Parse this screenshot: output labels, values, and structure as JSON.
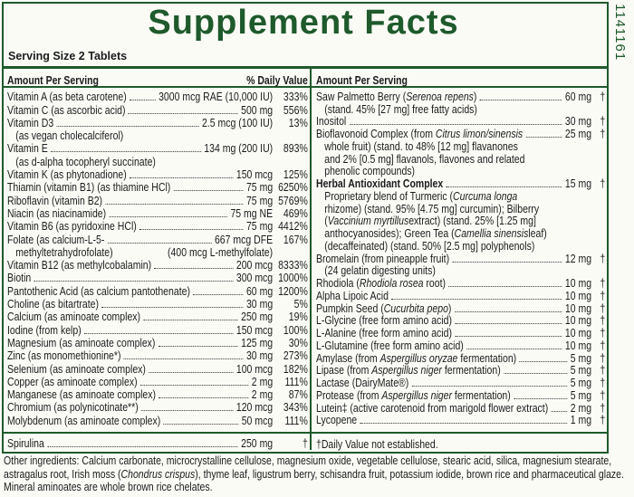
{
  "title": "Supplement Facts",
  "side_code": "1141161",
  "serving_size": "Serving Size 2 Tablets",
  "left": {
    "header_amount": "Amount Per Serving",
    "header_dv": "% Daily Value",
    "rows": [
      {
        "name": [
          "Vitamin A (as beta carotene)"
        ],
        "amount": "3000 mcg RAE (10,000 IU)",
        "dv": "333%"
      },
      {
        "name": [
          "Vitamin C (as ascorbic acid)"
        ],
        "amount": "500 mg",
        "dv": "556%"
      },
      {
        "name": [
          "Vitamin D3"
        ],
        "amount": "2.5 mcg (100 IU)",
        "dv": "13%",
        "sub": [
          [
            "(as vegan cholecalciferol)"
          ]
        ]
      },
      {
        "name": [
          "Vitamin E"
        ],
        "amount": "134 mg (200 IU)",
        "dv": "893%",
        "sub": [
          [
            "(as d-alpha tocopheryl succinate)"
          ]
        ]
      },
      {
        "name": [
          "Vitamin K (as phytonadione)"
        ],
        "amount": "150 mcg",
        "dv": "125%"
      },
      {
        "name": [
          "Thiamin (vitamin B1) (as thiamine HCl)"
        ],
        "amount": "75 mg",
        "dv": "6250%"
      },
      {
        "name": [
          "Riboflavin (vitamin B2)"
        ],
        "amount": "75 mg",
        "dv": "5769%"
      },
      {
        "name": [
          "Niacin (as niacinamide)"
        ],
        "amount": "75 mg NE",
        "dv": "469%"
      },
      {
        "name": [
          "Vitamin B6 (as pyridoxine HCl)"
        ],
        "amount": "75 mg",
        "dv": "4412%"
      },
      {
        "name": [
          "Folate (as calcium-L-5-"
        ],
        "amount": "667 mcg DFE",
        "dv": "167%",
        "sub": [
          [
            "methyltetrahydrofolate)"
          ]
        ],
        "sub_amount": "(400 mcg L-methylfolate)"
      },
      {
        "name": [
          "Vitamin B12 (as methylcobalamin)"
        ],
        "amount": "200 mcg",
        "dv": "8333%"
      },
      {
        "name": [
          "Biotin"
        ],
        "amount": "300 mcg",
        "dv": "1000%"
      },
      {
        "name": [
          "Pantothenic Acid (as calcium pantothenate)"
        ],
        "amount": "60 mg",
        "dv": "1200%"
      },
      {
        "name": [
          "Choline (as bitartrate)"
        ],
        "amount": "30 mg",
        "dv": "5%"
      },
      {
        "name": [
          "Calcium (as aminoate complex)"
        ],
        "amount": "250 mg",
        "dv": "19%"
      },
      {
        "name": [
          "Iodine (from kelp)"
        ],
        "amount": "150 mcg",
        "dv": "100%"
      },
      {
        "name": [
          "Magnesium (as aminoate complex)"
        ],
        "amount": "125 mg",
        "dv": "30%"
      },
      {
        "name": [
          "Zinc (as monomethionine*)"
        ],
        "amount": "30 mg",
        "dv": "273%"
      },
      {
        "name": [
          "Selenium (as aminoate complex)"
        ],
        "amount": "100 mcg",
        "dv": "182%"
      },
      {
        "name": [
          "Copper (as aminoate complex)"
        ],
        "amount": "2 mg",
        "dv": "111%"
      },
      {
        "name": [
          "Manganese (as aminoate complex)"
        ],
        "amount": "2 mg",
        "dv": "87%"
      },
      {
        "name": [
          "Chromium (as polynicotinate**)"
        ],
        "amount": "120 mcg",
        "dv": "343%"
      },
      {
        "name": [
          "Molybdenum (as aminoate complex)"
        ],
        "amount": "50 mcg",
        "dv": "111%"
      }
    ],
    "footer_row": {
      "name": [
        "Spirulina"
      ],
      "amount": "250 mg",
      "dv": "†"
    }
  },
  "right": {
    "header_amount": "Amount Per Serving",
    "rows": [
      {
        "name": [
          "Saw Palmetto Berry (",
          {
            "italic": "Serenoa repens"
          },
          ")"
        ],
        "amount": "60 mg",
        "dv": "†",
        "sub": [
          [
            "(stand. 45% [27 mg] free fatty acids)"
          ]
        ]
      },
      {
        "name": [
          "Inositol"
        ],
        "amount": "30 mg",
        "dv": "†"
      },
      {
        "name": [
          "Bioflavonoid Complex (from ",
          {
            "italic": "Citrus limon/sinensis"
          }
        ],
        "amount": "25 mg",
        "dv": "†",
        "sub": [
          [
            "whole fruit) (stand. to 48% [12 mg] flavanones"
          ],
          [
            "and 2% [0.5 mg] flavanols, flavones and related"
          ],
          [
            "phenolic compounds)"
          ]
        ]
      },
      {
        "name": [
          "Herbal Antioxidant Complex"
        ],
        "bold": true,
        "amount": "15 mg",
        "dv": "†",
        "sub": [
          [
            "Proprietary blend of Turmeric (",
            {
              "italic": "Curcuma longa"
            }
          ],
          [
            "rhizome) (stand. 95% [4.75 mg] curcumin); Bilberry"
          ],
          [
            "(",
            {
              "italic": "Vaccinium myrtillus"
            },
            " extract) (stand. 25% [1.25 mg]"
          ],
          [
            "anthocyanosides); Green Tea (",
            {
              "italic": "Camellia sinensis"
            },
            " leaf)"
          ],
          [
            "(decaffeinated) (stand. 50% [2.5 mg] polyphenols)"
          ]
        ]
      },
      {
        "name": [
          "Bromelain (from pineapple fruit)"
        ],
        "amount": "12 mg",
        "dv": "†",
        "sub": [
          [
            "(24 gelatin digesting units)"
          ]
        ]
      },
      {
        "name": [
          "Rhodiola (",
          {
            "italic": "Rhodiola rosea"
          },
          " root)"
        ],
        "amount": "10 mg",
        "dv": "†"
      },
      {
        "name": [
          "Alpha Lipoic Acid"
        ],
        "amount": "10 mg",
        "dv": "†"
      },
      {
        "name": [
          "Pumpkin Seed (",
          {
            "italic": "Cucurbita pepo"
          },
          ")"
        ],
        "amount": "10 mg",
        "dv": "†"
      },
      {
        "name": [
          "L-Glycine (free form amino acid)"
        ],
        "amount": "10 mg",
        "dv": "†"
      },
      {
        "name": [
          "L-Alanine (free form amino acid)"
        ],
        "amount": "10 mg",
        "dv": "†"
      },
      {
        "name": [
          "L-Glutamine (free form amino acid)"
        ],
        "amount": "10 mg",
        "dv": "†"
      },
      {
        "name": [
          "Amylase (from ",
          {
            "italic": "Aspergillus oryzae"
          },
          " fermentation)"
        ],
        "amount": "5 mg",
        "dv": "†"
      },
      {
        "name": [
          "Lipase (from ",
          {
            "italic": "Aspergillus niger"
          },
          " fermentation)"
        ],
        "amount": "5 mg",
        "dv": "†"
      },
      {
        "name": [
          "Lactase (DairyMate®)"
        ],
        "amount": "5 mg",
        "dv": "†"
      },
      {
        "name": [
          "Protease (from ",
          {
            "italic": "Aspergillus niger"
          },
          " fermentation)"
        ],
        "amount": "5 mg",
        "dv": "†"
      },
      {
        "name": [
          "Lutein‡ (active carotenoid from marigold flower extract)"
        ],
        "amount": "2 mg",
        "dv": "†"
      },
      {
        "name": [
          "Lycopene"
        ],
        "amount": "1 mg",
        "dv": "†"
      }
    ],
    "footnote": "†Daily Value not established."
  },
  "other_ingredients": [
    "Other ingredients: Calcium carbonate, microcrystalline cellulose, magnesium oxide, vegetable cellulose, stearic acid, silica, magnesium stearate, astragalus root, Irish moss (",
    {
      "italic": "Chondrus crispus"
    },
    "), thyme leaf, ligustrum berry, schisandra fruit, potassium iodide, brown rice and pharmaceutical glaze. Mineral aminoates are whole brown rice chelates."
  ]
}
